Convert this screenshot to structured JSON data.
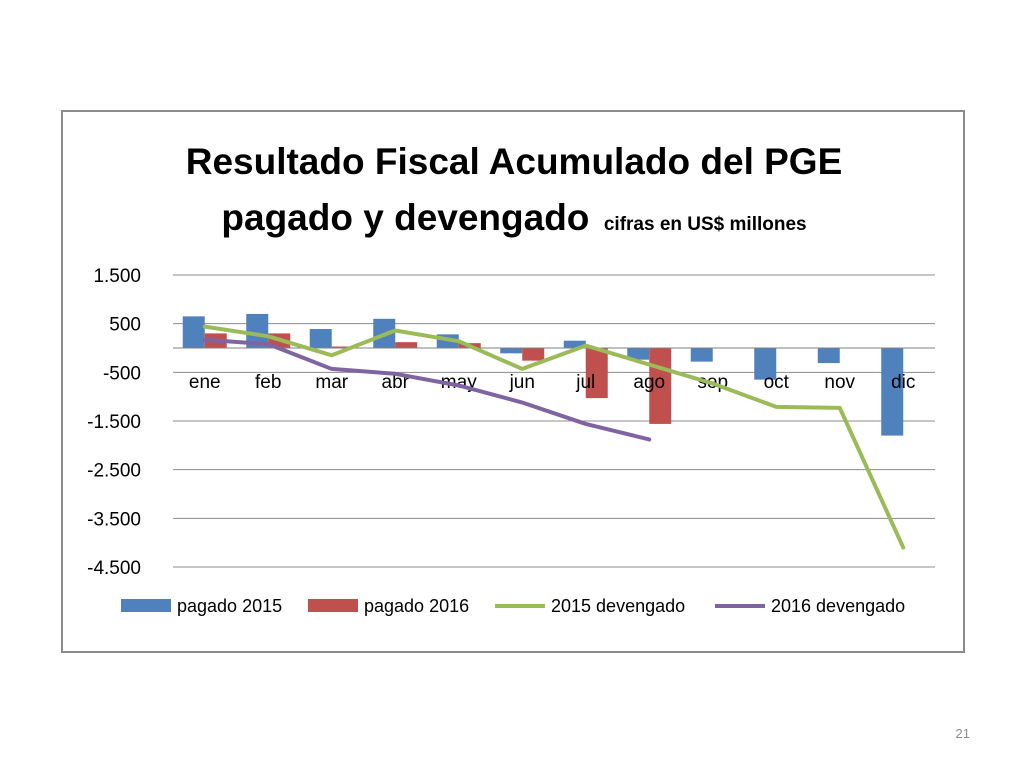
{
  "slide": {
    "number": "21"
  },
  "chart_data": {
    "type": "bar",
    "title": "Resultado Fiscal Acumulado del PGE",
    "subtitle_main": "pagado y devengado",
    "subtitle_note": "cifras en US$ millones",
    "categories": [
      "ene",
      "feb",
      "mar",
      "abr",
      "may",
      "jun",
      "jul",
      "ago",
      "sep",
      "oct",
      "nov",
      "dic"
    ],
    "y_ticks": [
      1500,
      500,
      -500,
      -1500,
      -2500,
      -3500,
      -4500
    ],
    "y_tick_labels": [
      "1.500",
      "500",
      "-500",
      "-1.500",
      "-2.500",
      "-3.500",
      "-4.500"
    ],
    "ylim": [
      -4500,
      1500
    ],
    "grid": true,
    "legend_position": "bottom",
    "series": [
      {
        "name": "pagado 2015",
        "kind": "bar",
        "color": "#4f81bd",
        "values": [
          650,
          700,
          390,
          600,
          280,
          -110,
          150,
          -240,
          -280,
          -650,
          -310,
          -1800
        ]
      },
      {
        "name": "pagado 2016",
        "kind": "bar",
        "color": "#c0504d",
        "values": [
          300,
          300,
          30,
          120,
          100,
          -260,
          -1030,
          -1560,
          null,
          null,
          null,
          null
        ]
      },
      {
        "name": "2015 devengado",
        "kind": "line",
        "color": "#9bbb59",
        "values": [
          440,
          240,
          -150,
          360,
          140,
          -430,
          50,
          -340,
          -730,
          -1210,
          -1230,
          -4100
        ]
      },
      {
        "name": "2016 devengado",
        "kind": "line",
        "color": "#8064a2",
        "values": [
          170,
          80,
          -430,
          -530,
          -770,
          -1120,
          -1560,
          -1880,
          null,
          null,
          null,
          null
        ]
      }
    ]
  }
}
